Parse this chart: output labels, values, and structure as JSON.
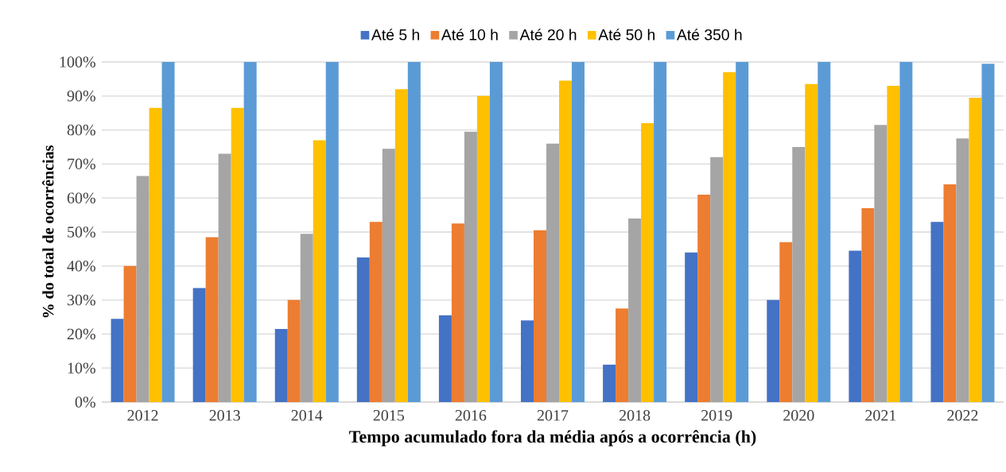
{
  "chart_data": {
    "type": "bar",
    "xlabel": "Tempo acumulado fora da média após a ocorrência (h)",
    "ylabel": "% do total de ocorrências",
    "categories": [
      "2012",
      "2013",
      "2014",
      "2015",
      "2016",
      "2017",
      "2018",
      "2019",
      "2020",
      "2021",
      "2022"
    ],
    "series": [
      {
        "name": "Até 5 h",
        "color": "#4472c4",
        "values": [
          24.5,
          33.5,
          21.5,
          42.5,
          25.5,
          24,
          11,
          44,
          30,
          44.5,
          53
        ]
      },
      {
        "name": "Até 10 h",
        "color": "#ed7d31",
        "values": [
          40,
          48.5,
          30,
          53,
          52.5,
          50.5,
          27.5,
          61,
          47,
          57,
          64
        ]
      },
      {
        "name": "Até 20 h",
        "color": "#a5a5a5",
        "values": [
          66.5,
          73,
          49.5,
          74.5,
          79.5,
          76,
          54,
          72,
          75,
          81.5,
          77.5
        ]
      },
      {
        "name": "Até 50 h",
        "color": "#ffc000",
        "values": [
          86.5,
          86.5,
          77,
          92,
          90,
          94.5,
          82,
          97,
          93.5,
          93,
          89.5
        ]
      },
      {
        "name": "Até 350 h",
        "color": "#5b9bd5",
        "values": [
          100,
          100,
          100,
          100,
          100,
          100,
          100,
          100,
          100,
          100,
          99.5
        ]
      }
    ],
    "ylim": [
      0,
      100
    ],
    "yticks": [
      {
        "value": 0,
        "label": "0%"
      },
      {
        "value": 10,
        "label": "10%"
      },
      {
        "value": 20,
        "label": "20%"
      },
      {
        "value": 30,
        "label": "30%"
      },
      {
        "value": 40,
        "label": "40%"
      },
      {
        "value": 50,
        "label": "50%"
      },
      {
        "value": 60,
        "label": "60%"
      },
      {
        "value": 70,
        "label": "70%"
      },
      {
        "value": 80,
        "label": "80%"
      },
      {
        "value": 90,
        "label": "90%"
      },
      {
        "value": 100,
        "label": "100%"
      }
    ],
    "grid": "y",
    "legend": "top"
  }
}
